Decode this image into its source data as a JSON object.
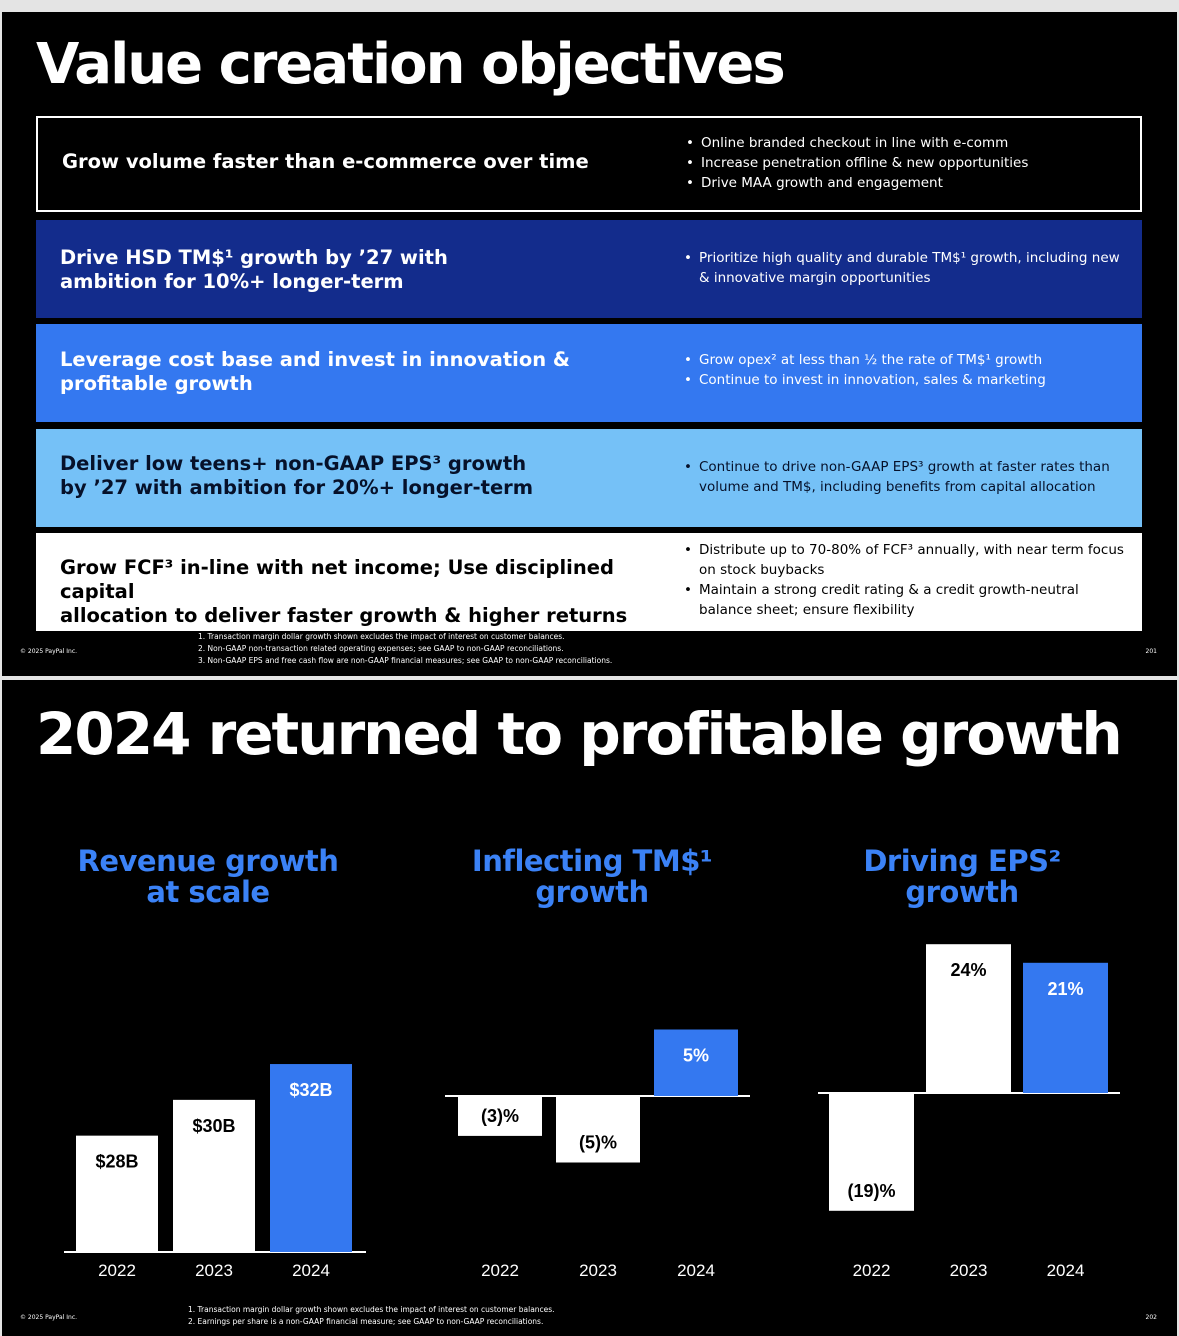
{
  "slide1": {
    "title": "Value creation objectives",
    "rows": [
      {
        "heading": "Grow volume faster than e-commerce  over time",
        "bullets": [
          "Online branded checkout in line with e-comm",
          "Increase penetration offline & new opportunities",
          "Drive MAA growth and engagement"
        ]
      },
      {
        "heading": "Drive HSD TM$¹ growth by ’27 with\nambition for 10%+ longer-term",
        "bullets": [
          "Prioritize high quality and durable TM$¹ growth, including new & innovative margin opportunities"
        ]
      },
      {
        "heading": "Leverage cost base and invest in innovation &\nprofitable growth",
        "bullets": [
          "Grow opex² at less than ½ the rate of TM$¹ growth",
          "Continue to invest in innovation, sales & marketing"
        ]
      },
      {
        "heading": "Deliver low teens+ non-GAAP EPS³ growth\nby ’27 with ambition for 20%+ longer-term",
        "bullets": [
          "Continue to drive non-GAAP EPS³ growth at faster rates than volume and TM$, including benefits from capital allocation"
        ]
      },
      {
        "heading": "Grow FCF³ in-line with net income; Use disciplined capital\nallocation to deliver faster growth & higher returns",
        "bullets": [
          "Distribute up to 70-80% of FCF³ annually, with near term focus on stock buybacks",
          "Maintain a strong credit rating & a credit growth-neutral balance sheet; ensure flexibility"
        ]
      }
    ],
    "footnotes": [
      "1.   Transaction margin dollar growth shown excludes the impact of interest on customer balances.",
      "2.   Non-GAAP non-transaction related operating expenses; see GAAP to non-GAAP reconciliations.",
      "3.   Non-GAAP EPS and free cash flow are non-GAAP financial measures; see GAAP to non-GAAP reconciliations."
    ],
    "copyright": "© 2025 PayPal Inc.",
    "page": "201"
  },
  "slide2": {
    "title": "2024 returned to profitable growth",
    "footnotes": [
      "1. Transaction margin dollar growth shown excludes the impact of interest on customer balances.",
      "2. Earnings per share is a non-GAAP financial measure; see GAAP to non-GAAP reconciliations."
    ],
    "copyright": "© 2025 PayPal Inc.",
    "page": "202"
  },
  "colors": {
    "white_bar": "#ffffff",
    "blue_bar": "#3478f0",
    "title_blue": "#3b82f6",
    "navy": "#132c8c",
    "light_blue": "#75c1f7"
  },
  "chart_data": [
    {
      "type": "bar",
      "title": "Revenue growth\nat scale",
      "categories": [
        "2022",
        "2023",
        "2024"
      ],
      "values": [
        28,
        30,
        32
      ],
      "labels": [
        "$28B",
        "$30B",
        "$32B"
      ],
      "unit": "$B",
      "highlight": "2024"
    },
    {
      "type": "bar",
      "title": "Inflecting TM$¹\ngrowth",
      "categories": [
        "2022",
        "2023",
        "2024"
      ],
      "values": [
        -3,
        -5,
        5
      ],
      "labels": [
        "(3)%",
        "(5)%",
        "5%"
      ],
      "unit": "%",
      "highlight": "2024"
    },
    {
      "type": "bar",
      "title": "Driving EPS²\ngrowth",
      "categories": [
        "2022",
        "2023",
        "2024"
      ],
      "values": [
        -19,
        24,
        21
      ],
      "labels": [
        "(19)%",
        "24%",
        "21%"
      ],
      "unit": "%",
      "highlight": "2024"
    }
  ]
}
